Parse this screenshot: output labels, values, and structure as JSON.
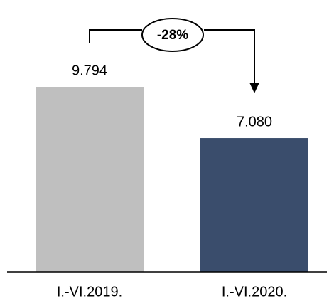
{
  "chart_data": {
    "type": "bar",
    "categories": [
      "I.-VI.2019.",
      "I.-VI.2020."
    ],
    "values": [
      9794,
      7080
    ],
    "value_labels": [
      "9.794",
      "7.080"
    ],
    "colors": [
      "#bfbfbf",
      "#3a4d6c"
    ],
    "annotation": "-28%"
  }
}
